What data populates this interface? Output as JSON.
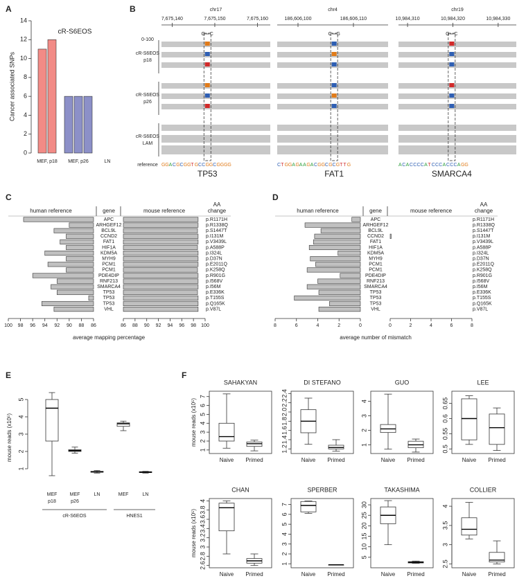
{
  "chart_data": [
    {
      "type": "bar",
      "panel": "A",
      "title": "cR-S6EOS",
      "ylabel": "Cancer associated SNPs",
      "categories": [
        "MEF, p18",
        "MEF, p26",
        "LN"
      ],
      "colors": [
        "#f28b86",
        "#8c90c8",
        "#8c90c8"
      ],
      "series": [
        {
          "values": [
            11,
            6,
            0
          ]
        },
        {
          "values": [
            12,
            6,
            0
          ]
        },
        {
          "values": [
            null,
            6,
            0
          ]
        }
      ],
      "ylim": [
        0,
        14
      ],
      "yticks": [
        0,
        2,
        4,
        6,
        8,
        10,
        12,
        14
      ]
    },
    {
      "type": "genome-track",
      "panel": "B",
      "range_label": "0-100",
      "tracks": [
        [
          "cR-S6EOS",
          "p18"
        ],
        [
          "cR-S6EOS",
          "p26"
        ],
        [
          "cR-S6EOS",
          "LAM"
        ]
      ],
      "reference_label": "reference",
      "loci": [
        {
          "chrom": "chr17",
          "xlim": [
            7675137.5,
            7675163
          ],
          "xticks": [
            {
              "value": 7675140,
              "label": "7,675,140"
            },
            {
              "value": 7675150,
              "label": "7,675,150"
            },
            {
              "value": 7675160,
              "label": "7,675,160"
            }
          ],
          "gene": "TP53",
          "reference": "GGACGCGGTGCCGGCGGGG",
          "alleles": [
            "G",
            "C"
          ]
        },
        {
          "chrom": "chr4",
          "xlim": [
            186606096.25,
            186606116.25
          ],
          "xticks": [
            {
              "value": 186606100,
              "label": "186,606,100"
            },
            {
              "value": 186606110,
              "label": "186,606,110"
            }
          ],
          "gene": "FAT1",
          "reference": "CTGGAGAAGACGGCGCGTTG",
          "alleles": [
            "C",
            "G"
          ]
        },
        {
          "chrom": "chr19",
          "xlim": [
            10984308,
            10984334
          ],
          "xticks": [
            {
              "value": 10984310,
              "label": "10,984,310"
            },
            {
              "value": 10984320,
              "label": "10,984,320"
            },
            {
              "value": 10984330,
              "label": "10,984,330"
            }
          ],
          "gene": "SMARCA4",
          "reference": "ACACCCCATCCCACCCAGG",
          "alleles": [
            "G",
            "C"
          ]
        }
      ]
    },
    {
      "type": "butterfly",
      "panel": "C",
      "gene_header": "gene",
      "aa_header": [
        "AA",
        "change"
      ],
      "xlabel": "average mapping percentage",
      "categories": [
        "APC",
        "ARHGEF12",
        "BCL9L",
        "CCND2",
        "FAT1",
        "HIF1A",
        "KDM5A",
        "MYH9",
        "PCM1",
        "PCM1",
        "PDE4DIP",
        "RNF213",
        "SMARCA4",
        "TP53",
        "TP53",
        "TP53",
        "VHL"
      ],
      "aa_changes": [
        "p.R1171H",
        "p.R1338Q",
        "p.S1447T",
        "p.I131M",
        "p.V3439L",
        "p.A588P",
        "p.I324L",
        "p.D37N",
        "p.E2011Q",
        "p.K258Q",
        "p.R901G",
        "p.I568V",
        "p.I56M",
        "p.E336K",
        "p.T155S",
        "p.Q165K",
        "p.V87L"
      ],
      "series": [
        {
          "name": "human reference",
          "color": "#c0c0c0",
          "xlim": [
            100,
            86
          ],
          "xticks": [
            100,
            98,
            96,
            94,
            92,
            90,
            88,
            86
          ],
          "values": [
            97.5,
            90,
            92.5,
            90.5,
            91.5,
            90.5,
            94,
            90.5,
            93.5,
            90.5,
            96,
            92,
            93,
            92,
            86.8,
            94.5,
            92.5
          ]
        },
        {
          "name": "mouse reference",
          "color": "#c0c0c0",
          "xlim": [
            86,
            100
          ],
          "xticks": [
            86,
            88,
            90,
            92,
            94,
            96,
            98,
            100
          ],
          "values": [
            98.8,
            98.8,
            98.7,
            98.8,
            98.8,
            98.7,
            98.8,
            98.8,
            98.8,
            98.7,
            98.8,
            98.8,
            98.8,
            98.7,
            98.8,
            98.8,
            98.8
          ]
        }
      ]
    },
    {
      "type": "butterfly",
      "panel": "D",
      "gene_header": "gene",
      "aa_header": [
        "AA",
        "change"
      ],
      "xlabel": "average number of mismatch",
      "categories": [
        "APC",
        "ARHGEF12",
        "BCL9L",
        "CCND2",
        "FAT1",
        "HIF1A",
        "KDM5A",
        "MYH9",
        "PCM1",
        "PCM1",
        "PDE4DIP",
        "RNF213",
        "SMARCA4",
        "TP53",
        "TP53",
        "TP53",
        "VHL"
      ],
      "aa_changes": [
        "p.R1171H",
        "p.R1338Q",
        "p.S1447T",
        "p.I131M",
        "p.V3439L",
        "p.A588P",
        "p.I324L",
        "p.D37N",
        "p.E2011Q",
        "p.K258Q",
        "p.R901G",
        "p.I568V",
        "p.I56M",
        "p.E336K",
        "p.T155S",
        "p.Q165K",
        "p.V87L"
      ],
      "series": [
        {
          "name": "human reference",
          "color": "#c0c0c0",
          "xlim": [
            8,
            0
          ],
          "xticks": [
            8,
            6,
            4,
            2,
            0
          ],
          "values": [
            0.8,
            5.2,
            3.7,
            4.3,
            4.4,
            4.8,
            2.1,
            4.7,
            4.2,
            5.0,
            1.9,
            4.0,
            5.0,
            3.9,
            6.2,
            2.9,
            3.9
          ]
        },
        {
          "name": "mouse reference",
          "color": "#c0c0c0",
          "xlim": [
            0,
            8
          ],
          "xticks": [
            0,
            2,
            4,
            6,
            8
          ],
          "values": [
            0,
            0,
            0,
            0.1,
            0,
            0,
            0,
            0,
            0,
            0,
            0,
            0,
            0,
            0,
            0,
            0,
            0
          ]
        }
      ]
    },
    {
      "type": "box",
      "panel": "E",
      "ylabel": "mouse reads (x10⁵)",
      "categories": [
        [
          "MEF",
          "p18"
        ],
        [
          "MEF",
          "p26"
        ],
        [
          "LN"
        ],
        [
          "MEF"
        ],
        [
          "LN"
        ]
      ],
      "groups": [
        "cR-S6EOS",
        "HNES1"
      ],
      "ylim": [
        0,
        5.6
      ],
      "yticks": [
        1,
        2,
        3,
        4,
        5
      ],
      "boxes": [
        {
          "min": 0.6,
          "q1": 2.6,
          "median": 4.5,
          "q3": 5.0,
          "max": 5.4
        },
        {
          "min": 1.9,
          "q1": 2.0,
          "median": 2.05,
          "q3": 2.1,
          "max": 2.25
        },
        {
          "min": 0.75,
          "q1": 0.8,
          "median": 0.82,
          "q3": 0.85,
          "max": 0.9
        },
        {
          "min": 3.2,
          "q1": 3.45,
          "median": 3.6,
          "q3": 3.65,
          "max": 3.75
        },
        {
          "min": 0.75,
          "q1": 0.78,
          "median": 0.8,
          "q3": 0.83,
          "max": 0.85
        }
      ]
    },
    {
      "type": "box",
      "panel": "F",
      "title": "SAHAKYAN",
      "ylabel": "mouse reads (x10⁵)",
      "categories": [
        "Naive",
        "Primed"
      ],
      "ylim": [
        0.6,
        7.6
      ],
      "yticks": [
        1,
        2,
        3,
        4,
        5,
        6,
        7
      ],
      "boxes": [
        {
          "min": 1.2,
          "q1": 2.0,
          "median": 2.5,
          "q3": 4.0,
          "max": 7.3
        },
        {
          "min": 0.9,
          "q1": 1.4,
          "median": 1.7,
          "q3": 1.9,
          "max": 2.1
        }
      ]
    },
    {
      "type": "box",
      "title": "DI STEFANO",
      "categories": [
        "Naive",
        "Primed"
      ],
      "ylim": [
        1.1,
        2.45
      ],
      "yticks": [
        1.2,
        1.4,
        1.6,
        1.8,
        {
          "value": 2,
          "label": "2.0"
        },
        2.2,
        2.4
      ],
      "boxes": [
        {
          "min": 1.3,
          "q1": 1.55,
          "median": 1.8,
          "q3": 2.05,
          "max": 2.3
        },
        {
          "min": 1.15,
          "q1": 1.2,
          "median": 1.23,
          "q3": 1.28,
          "max": 1.4
        }
      ]
    },
    {
      "type": "box",
      "title": "GUO",
      "categories": [
        "Naive",
        "Primed"
      ],
      "ylim": [
        0.4,
        4.7
      ],
      "yticks": [
        1,
        2,
        3,
        4
      ],
      "boxes": [
        {
          "min": 0.7,
          "q1": 1.85,
          "median": 2.1,
          "q3": 2.4,
          "max": 4.5
        },
        {
          "min": 0.5,
          "q1": 0.8,
          "median": 1.0,
          "q3": 1.25,
          "max": 1.4
        }
      ]
    },
    {
      "type": "box",
      "title": "LEE",
      "categories": [
        "Naive",
        "Primed"
      ],
      "ylim": [
        0.485,
        0.69
      ],
      "yticks": [
        0.5,
        0.55,
        0.6,
        0.65
      ],
      "boxes": [
        {
          "min": 0.515,
          "q1": 0.53,
          "median": 0.6,
          "q3": 0.665,
          "max": 0.675
        },
        {
          "min": 0.495,
          "q1": 0.515,
          "median": 0.57,
          "q3": 0.615,
          "max": 0.635
        }
      ]
    },
    {
      "type": "box",
      "title": "CHAN",
      "ylabel": "mouse reads (x10⁵)",
      "categories": [
        "Naive",
        "Primed"
      ],
      "ylim": [
        2.55,
        4.05
      ],
      "yticks": [
        2.6,
        2.8,
        3,
        3.2,
        3.4,
        3.6,
        3.8,
        4
      ],
      "boxes": [
        {
          "min": 2.85,
          "q1": 3.35,
          "median": 3.85,
          "q3": 3.95,
          "max": 4.0
        },
        {
          "min": 2.6,
          "q1": 2.65,
          "median": 2.7,
          "q3": 2.75,
          "max": 2.85
        }
      ]
    },
    {
      "type": "box",
      "title": "SPERBER",
      "categories": [
        "Naive",
        "Primed"
      ],
      "ylim": [
        0.6,
        7.6
      ],
      "yticks": [
        1,
        2,
        3,
        4,
        5,
        6,
        7
      ],
      "boxes": [
        {
          "min": 6.1,
          "q1": 6.25,
          "median": 6.9,
          "q3": 7.3,
          "max": 7.35
        },
        {
          "min": 0.9,
          "q1": 0.9,
          "median": 0.9,
          "q3": 0.9,
          "max": 0.9
        }
      ]
    },
    {
      "type": "box",
      "title": "TAKASHIMA",
      "categories": [
        "Naive",
        "Primed"
      ],
      "ylim": [
        0,
        33
      ],
      "yticks": [
        5,
        10,
        15,
        20,
        25,
        30
      ],
      "boxes": [
        {
          "min": 11,
          "q1": 21,
          "median": 25,
          "q3": 29,
          "max": 32
        },
        {
          "min": 2.1,
          "q1": 2.3,
          "median": 2.6,
          "q3": 2.9,
          "max": 3.2
        }
      ]
    },
    {
      "type": "box",
      "title": "COLLIER",
      "categories": [
        "Naive",
        "Primed"
      ],
      "ylim": [
        2.4,
        4.2
      ],
      "yticks": [
        2.5,
        3,
        3.5,
        4
      ],
      "boxes": [
        {
          "min": 3.15,
          "q1": 3.25,
          "median": 3.4,
          "q3": 3.7,
          "max": 4.1
        },
        {
          "min": 2.5,
          "q1": 2.55,
          "median": 2.6,
          "q3": 2.8,
          "max": 3.1
        }
      ]
    }
  ]
}
